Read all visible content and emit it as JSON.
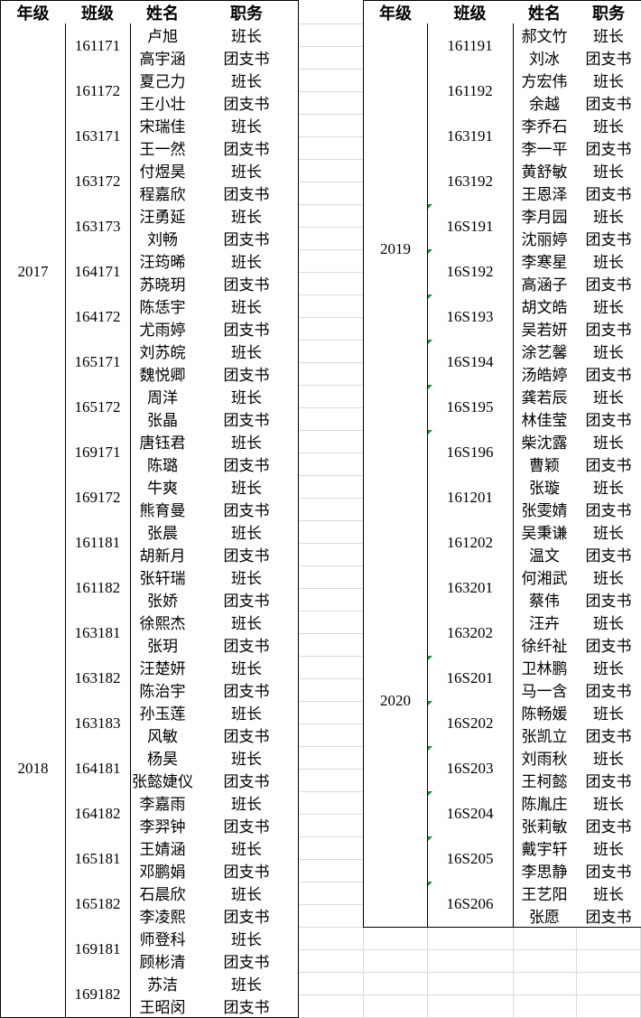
{
  "tables": [
    {
      "header": [
        "年级",
        "班级",
        "姓名",
        "职务"
      ],
      "grades": [
        {
          "grade": "2017",
          "classes": [
            {
              "class": "161171",
              "members": [
                [
                  "卢旭",
                  "班长"
                ],
                [
                  "高宇涵",
                  "团支书"
                ]
              ]
            },
            {
              "class": "161172",
              "members": [
                [
                  "夏己力",
                  "班长"
                ],
                [
                  "王小壮",
                  "团支书"
                ]
              ]
            },
            {
              "class": "163171",
              "members": [
                [
                  "宋瑞佳",
                  "班长"
                ],
                [
                  "王一然",
                  "团支书"
                ]
              ]
            },
            {
              "class": "163172",
              "members": [
                [
                  "付煜昊",
                  "班长"
                ],
                [
                  "程嘉欣",
                  "团支书"
                ]
              ]
            },
            {
              "class": "163173",
              "members": [
                [
                  "汪勇延",
                  "班长"
                ],
                [
                  "刘畅",
                  "团支书"
                ]
              ]
            },
            {
              "class": "164171",
              "members": [
                [
                  "汪筠晞",
                  "班长"
                ],
                [
                  "苏晓玥",
                  "团支书"
                ]
              ]
            },
            {
              "class": "164172",
              "members": [
                [
                  "陈恁宇",
                  "班长"
                ],
                [
                  "尤雨婷",
                  "团支书"
                ]
              ]
            },
            {
              "class": "165171",
              "members": [
                [
                  "刘苏皖",
                  "班长"
                ],
                [
                  "魏悦卿",
                  "团支书"
                ]
              ]
            },
            {
              "class": "165172",
              "members": [
                [
                  "周洋",
                  "班长"
                ],
                [
                  "张晶",
                  "团支书"
                ]
              ]
            },
            {
              "class": "169171",
              "members": [
                [
                  "唐钰君",
                  "班长"
                ],
                [
                  "陈璐",
                  "团支书"
                ]
              ]
            },
            {
              "class": "169172",
              "members": [
                [
                  "牛爽",
                  "班长"
                ],
                [
                  "熊育曼",
                  "团支书"
                ]
              ]
            }
          ]
        },
        {
          "grade": "2018",
          "classes": [
            {
              "class": "161181",
              "members": [
                [
                  "张晨",
                  "班长"
                ],
                [
                  "胡新月",
                  "团支书"
                ]
              ]
            },
            {
              "class": "161182",
              "members": [
                [
                  "张轩瑞",
                  "班长"
                ],
                [
                  "张娇",
                  "团支书"
                ]
              ]
            },
            {
              "class": "163181",
              "members": [
                [
                  "徐熙杰",
                  "班长"
                ],
                [
                  "张玥",
                  "团支书"
                ]
              ]
            },
            {
              "class": "163182",
              "members": [
                [
                  "汪楚妍",
                  "班长"
                ],
                [
                  "陈治宇",
                  "团支书"
                ]
              ]
            },
            {
              "class": "163183",
              "members": [
                [
                  "孙玉莲",
                  "班长"
                ],
                [
                  "风敏",
                  "团支书"
                ]
              ]
            },
            {
              "class": "164181",
              "members": [
                [
                  "杨昊",
                  "班长"
                ],
                [
                  "张懿婕仪",
                  "团支书"
                ]
              ]
            },
            {
              "class": "164182",
              "members": [
                [
                  "李嘉雨",
                  "班长"
                ],
                [
                  "李羿钟",
                  "团支书"
                ]
              ]
            },
            {
              "class": "165181",
              "members": [
                [
                  "王婧涵",
                  "班长"
                ],
                [
                  "邓鹏娟",
                  "团支书"
                ]
              ]
            },
            {
              "class": "165182",
              "members": [
                [
                  "石晨欣",
                  "班长"
                ],
                [
                  "李凌熙",
                  "团支书"
                ]
              ]
            },
            {
              "class": "169181",
              "members": [
                [
                  "师登科",
                  "班长"
                ],
                [
                  "顾彬清",
                  "团支书"
                ]
              ]
            },
            {
              "class": "169182",
              "members": [
                [
                  "苏洁",
                  "班长"
                ],
                [
                  "王昭闵",
                  "团支书"
                ]
              ]
            }
          ]
        }
      ]
    },
    {
      "header": [
        "年级",
        "班级",
        "姓名",
        "职务"
      ],
      "grades": [
        {
          "grade": "2019",
          "classes": [
            {
              "class": "161191",
              "members": [
                [
                  "郝文竹",
                  "班长"
                ],
                [
                  "刘冰",
                  "团支书"
                ]
              ]
            },
            {
              "class": "161192",
              "members": [
                [
                  "方宏伟",
                  "班长"
                ],
                [
                  "余越",
                  "团支书"
                ]
              ]
            },
            {
              "class": "163191",
              "members": [
                [
                  "李乔石",
                  "班长"
                ],
                [
                  "李一平",
                  "团支书"
                ]
              ]
            },
            {
              "class": "163192",
              "members": [
                [
                  "黄舒敏",
                  "班长"
                ],
                [
                  "王恩泽",
                  "团支书"
                ]
              ]
            },
            {
              "class": "16S191",
              "members": [
                [
                  "李月园",
                  "班长"
                ],
                [
                  "沈丽婷",
                  "团支书"
                ]
              ]
            },
            {
              "class": "16S192",
              "members": [
                [
                  "李寒星",
                  "班长"
                ],
                [
                  "高涵子",
                  "团支书"
                ]
              ]
            },
            {
              "class": "16S193",
              "members": [
                [
                  "胡文皓",
                  "班长"
                ],
                [
                  "吴若妍",
                  "团支书"
                ]
              ]
            },
            {
              "class": "16S194",
              "members": [
                [
                  "涂艺馨",
                  "班长"
                ],
                [
                  "汤皓婷",
                  "团支书"
                ]
              ]
            },
            {
              "class": "16S195",
              "members": [
                [
                  "龚若辰",
                  "班长"
                ],
                [
                  "林佳莹",
                  "团支书"
                ]
              ]
            },
            {
              "class": "16S196",
              "members": [
                [
                  "柴沈露",
                  "班长"
                ],
                [
                  "曹颖",
                  "团支书"
                ]
              ]
            }
          ]
        },
        {
          "grade": "2020",
          "classes": [
            {
              "class": "161201",
              "members": [
                [
                  "张璇",
                  "班长"
                ],
                [
                  "张雯婧",
                  "团支书"
                ]
              ]
            },
            {
              "class": "161202",
              "members": [
                [
                  "吴秉谦",
                  "班长"
                ],
                [
                  "温文",
                  "团支书"
                ]
              ]
            },
            {
              "class": "163201",
              "members": [
                [
                  "何湘武",
                  "班长"
                ],
                [
                  "蔡伟",
                  "团支书"
                ]
              ]
            },
            {
              "class": "163202",
              "members": [
                [
                  "汪卉",
                  "班长"
                ],
                [
                  "徐纤祉",
                  "团支书"
                ]
              ]
            },
            {
              "class": "16S201",
              "members": [
                [
                  "卫林鹏",
                  "班长"
                ],
                [
                  "马一含",
                  "团支书"
                ]
              ]
            },
            {
              "class": "16S202",
              "members": [
                [
                  "陈畅媛",
                  "班长"
                ],
                [
                  "张凯立",
                  "团支书"
                ]
              ]
            },
            {
              "class": "16S203",
              "members": [
                [
                  "刘雨秋",
                  "班长"
                ],
                [
                  "王柯懿",
                  "团支书"
                ]
              ]
            },
            {
              "class": "16S204",
              "members": [
                [
                  "陈胤庄",
                  "班长"
                ],
                [
                  "张莉敏",
                  "团支书"
                ]
              ]
            },
            {
              "class": "16S205",
              "members": [
                [
                  "戴宇轩",
                  "班长"
                ],
                [
                  "李思静",
                  "团支书"
                ]
              ]
            },
            {
              "class": "16S206",
              "members": [
                [
                  "王艺阳",
                  "班长"
                ],
                [
                  "张愿",
                  "团支书"
                ]
              ]
            }
          ]
        }
      ]
    }
  ]
}
